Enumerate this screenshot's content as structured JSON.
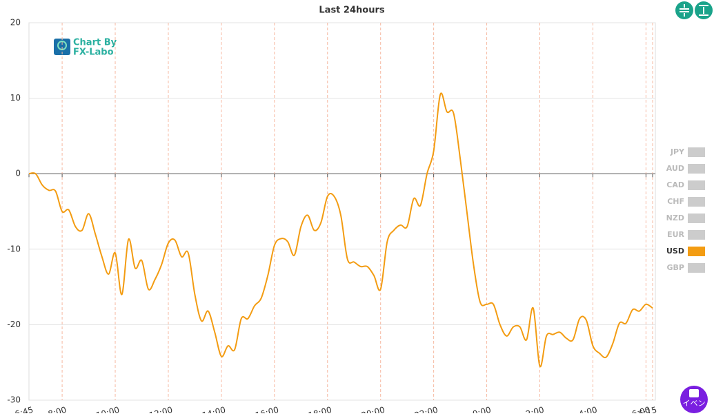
{
  "chart_data": {
    "type": "line",
    "title": "Last 24hours",
    "x": [
      "6:45",
      "7:00",
      "7:15",
      "7:30",
      "7:45",
      "8:00",
      "8:15",
      "8:30",
      "8:45",
      "9:00",
      "9:15",
      "9:30",
      "9:45",
      "10:00",
      "10:15",
      "10:30",
      "10:45",
      "11:00",
      "11:15",
      "11:30",
      "11:45",
      "12:00",
      "12:15",
      "12:30",
      "12:45",
      "13:00",
      "13:15",
      "13:30",
      "13:45",
      "14:00",
      "14:15",
      "14:30",
      "14:45",
      "15:00",
      "15:15",
      "15:30",
      "15:45",
      "16:00",
      "16:15",
      "16:30",
      "16:45",
      "17:00",
      "17:15",
      "17:30",
      "17:45",
      "18:00",
      "18:15",
      "18:30",
      "18:45",
      "19:00",
      "19:15",
      "19:30",
      "19:45",
      "20:00",
      "20:15",
      "20:30",
      "20:45",
      "21:00",
      "21:15",
      "21:30",
      "21:45",
      "22:00",
      "22:15",
      "22:30",
      "22:45",
      "23:00",
      "23:15",
      "23:30",
      "23:45",
      "0:00",
      "0:15",
      "0:30",
      "0:45",
      "1:00",
      "1:15",
      "1:30",
      "1:45",
      "2:00",
      "2:15",
      "2:30",
      "2:45",
      "3:00",
      "3:15",
      "3:30",
      "3:45",
      "4:00",
      "4:15",
      "4:30",
      "4:45",
      "5:00",
      "5:15",
      "5:30",
      "5:45",
      "6:00",
      "6:15"
    ],
    "series": [
      {
        "name": "USD",
        "color": "#f39c12",
        "values": [
          0,
          0,
          -1.5,
          -2.2,
          -2.3,
          -5,
          -4.8,
          -7,
          -7.5,
          -5.3,
          -8,
          -11,
          -13.3,
          -10.5,
          -16,
          -8.7,
          -12.5,
          -11.5,
          -15.3,
          -14,
          -12,
          -9.2,
          -8.8,
          -11,
          -10.5,
          -16,
          -19.5,
          -18.2,
          -21,
          -24.2,
          -22.8,
          -23.3,
          -19.2,
          -19.2,
          -17.5,
          -16.5,
          -13.5,
          -9.5,
          -8.6,
          -9,
          -10.8,
          -7,
          -5.5,
          -7.5,
          -6.5,
          -3,
          -3,
          -5.5,
          -11.3,
          -11.7,
          -12.3,
          -12.3,
          -13.5,
          -15.3,
          -9,
          -7.5,
          -6.8,
          -7,
          -3.3,
          -4.2,
          0,
          3,
          10.5,
          8.2,
          8,
          2,
          -5,
          -12,
          -17,
          -17.3,
          -17.3,
          -20,
          -21.5,
          -20.3,
          -20.3,
          -22,
          -17.8,
          -25.5,
          -21.5,
          -21.3,
          -21,
          -21.8,
          -22,
          -19.2,
          -19.4,
          -22.8,
          -23.8,
          -24.3,
          -22.5,
          -19.8,
          -19.8,
          -18,
          -18.2,
          -17.3,
          -17.8
        ]
      }
    ],
    "legend_items": [
      {
        "name": "JPY",
        "color": "#cccccc"
      },
      {
        "name": "AUD",
        "color": "#cccccc"
      },
      {
        "name": "CAD",
        "color": "#cccccc"
      },
      {
        "name": "CHF",
        "color": "#cccccc"
      },
      {
        "name": "NZD",
        "color": "#cccccc"
      },
      {
        "name": "EUR",
        "color": "#cccccc"
      },
      {
        "name": "USD",
        "color": "#f39c12"
      },
      {
        "name": "GBP",
        "color": "#cccccc"
      }
    ],
    "xticks": [
      "6:45",
      "8:00",
      "10:00",
      "12:00",
      "14:00",
      "16:00",
      "18:00",
      "20:00",
      "22:00",
      "0:00",
      "2:00",
      "4:00",
      "6:00",
      "6:15"
    ],
    "ylim": [
      -30,
      20
    ],
    "yticks": [
      -30,
      -20,
      -10,
      0,
      10,
      20
    ],
    "grid": true,
    "watermark": [
      "Chart By",
      "FX-Labo"
    ],
    "button_label": "イベン"
  }
}
